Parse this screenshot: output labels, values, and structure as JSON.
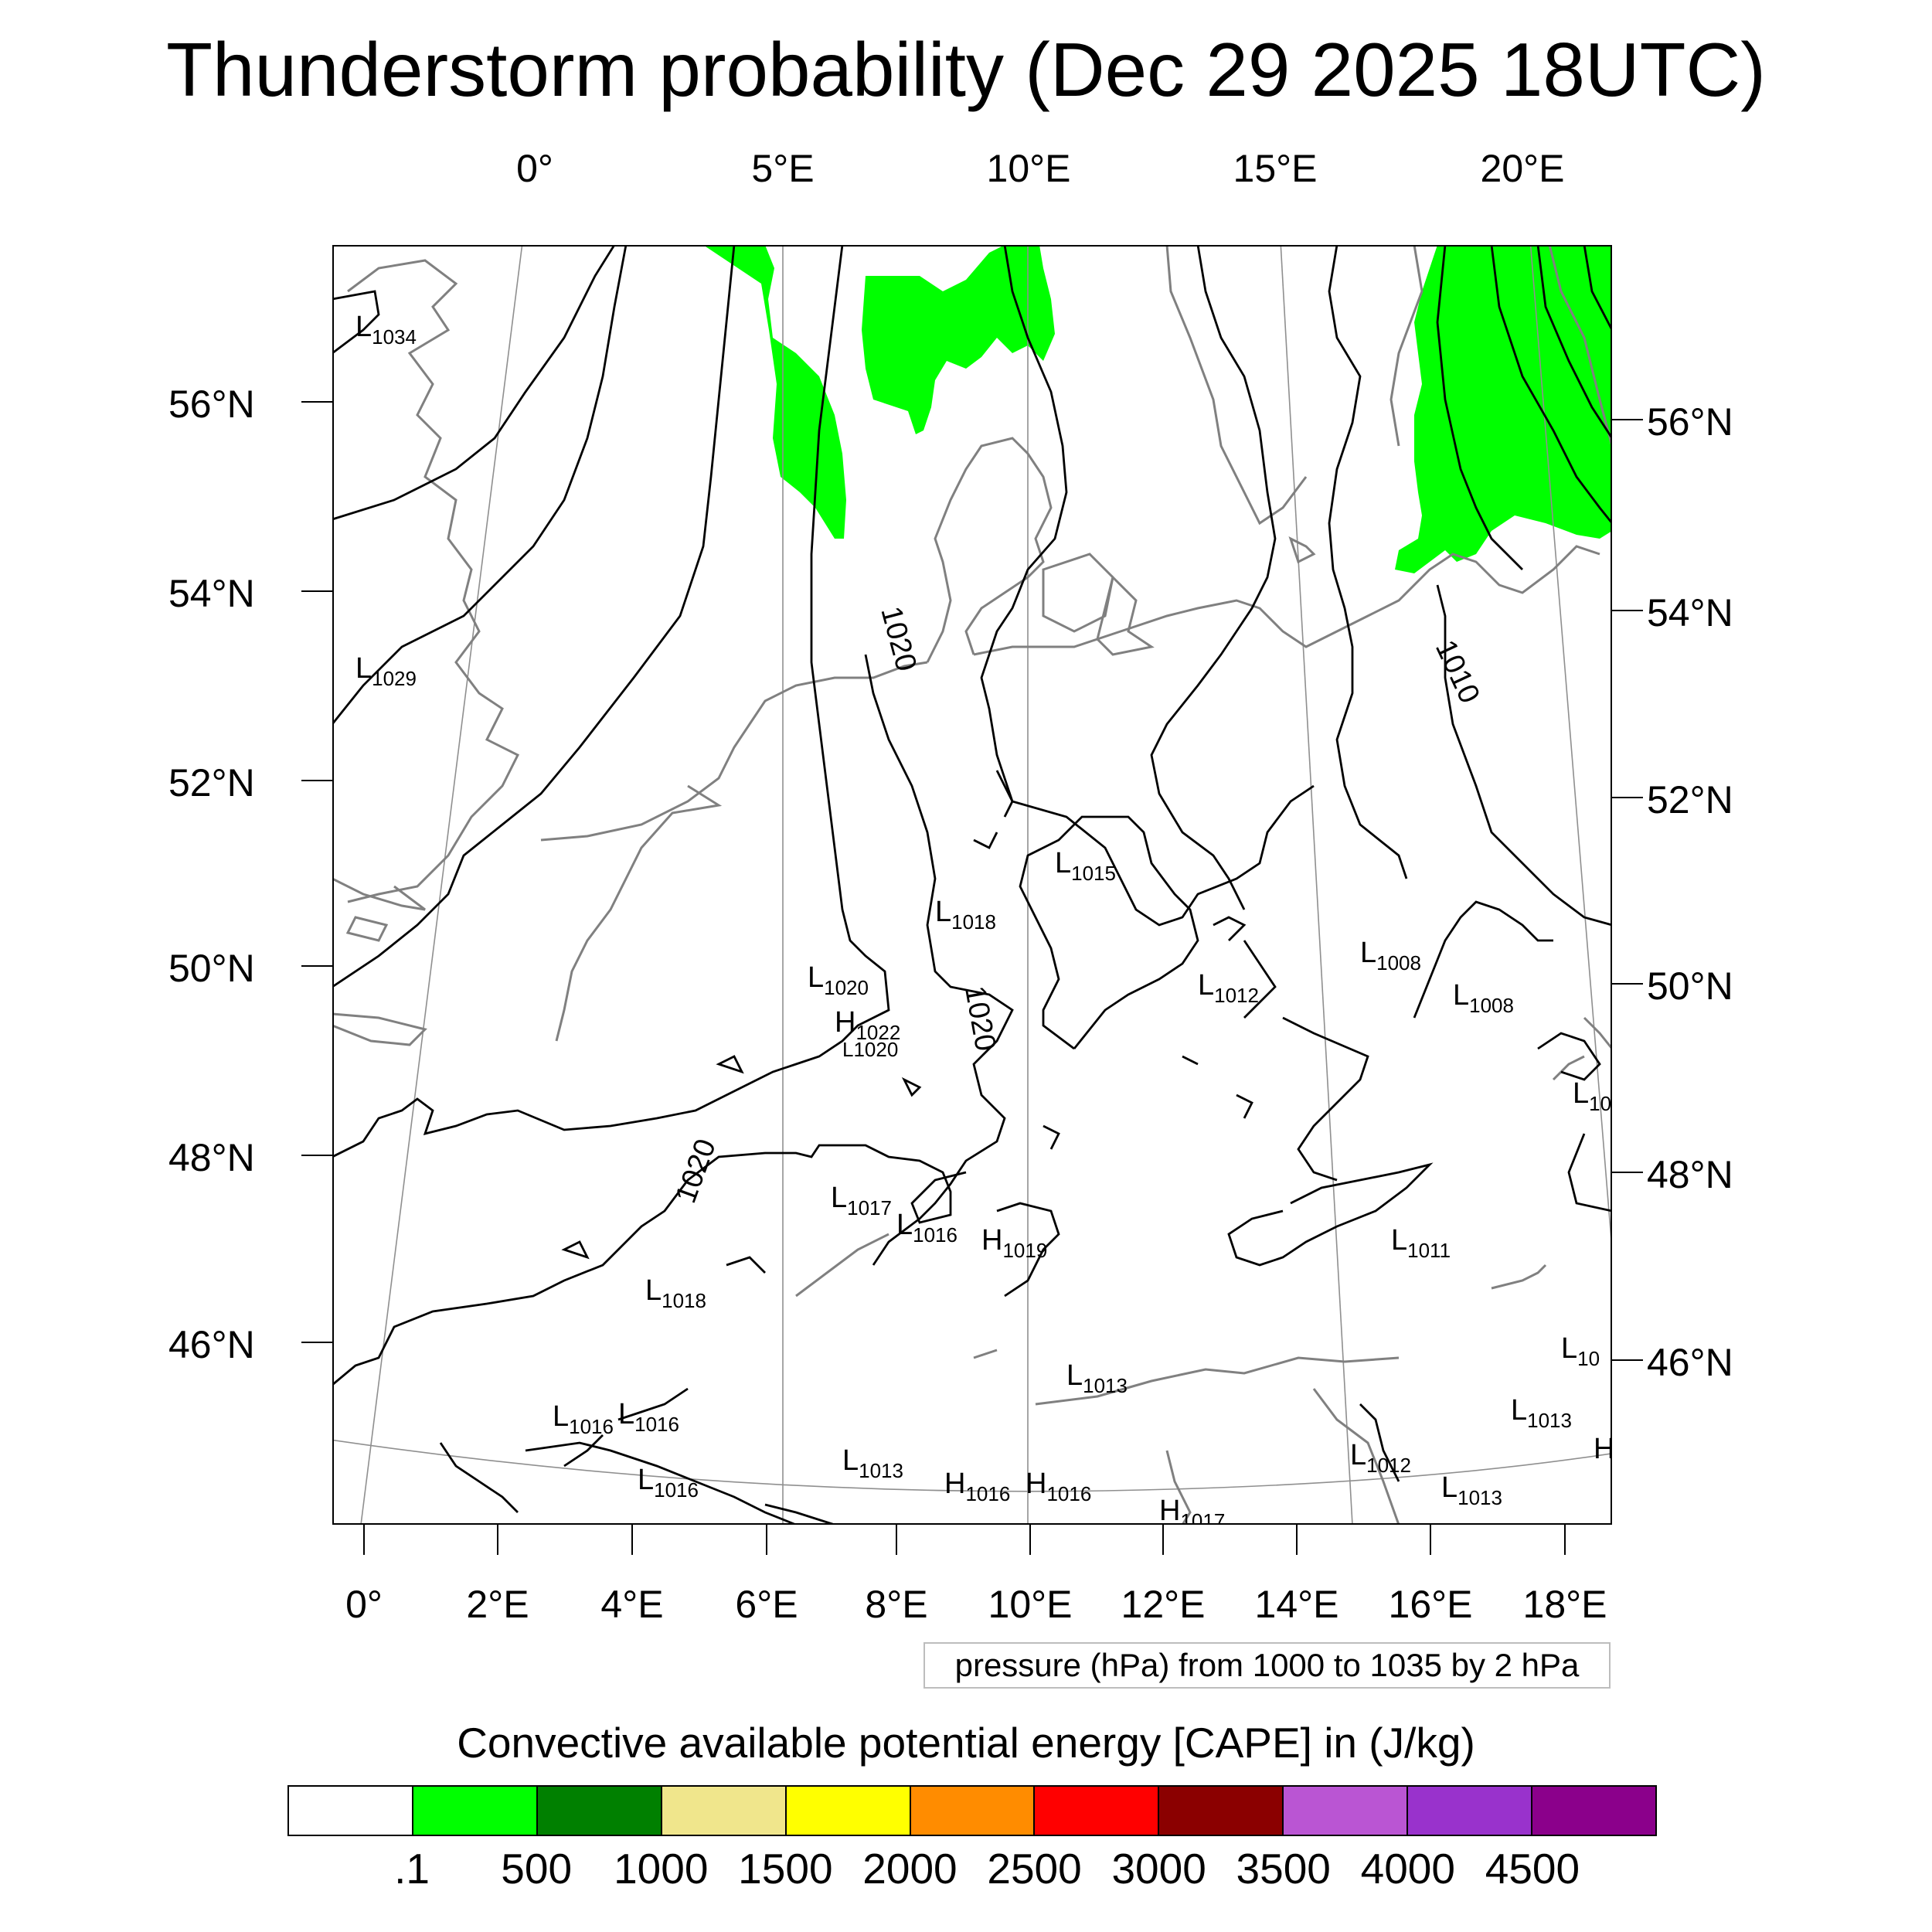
{
  "title": "Thunderstorm probability (Dec 29 2025 18UTC)",
  "axes": {
    "top_lon": [
      "0°",
      "5°E",
      "10°E",
      "15°E",
      "20°E"
    ],
    "bottom_lon": [
      "0°",
      "2°E",
      "4°E",
      "6°E",
      "8°E",
      "10°E",
      "12°E",
      "14°E",
      "16°E",
      "18°E"
    ],
    "left_lat": [
      "56°N",
      "54°N",
      "52°N",
      "50°N",
      "48°N",
      "46°N"
    ],
    "right_lat": [
      "56°N",
      "54°N",
      "52°N",
      "50°N",
      "48°N",
      "46°N"
    ]
  },
  "pressure_note": "pressure (hPa) from 1000 to 1035 by 2 hPa",
  "colorbar": {
    "title": "Convective available potential energy [CAPE] in (J/kg)",
    "colors": [
      "#ffffff",
      "#00ff00",
      "#008000",
      "#f0e68c",
      "#ffff00",
      "#ff8c00",
      "#ff0000",
      "#8b0000",
      "#ba55d3",
      "#9932cc",
      "#8b008b"
    ],
    "labels": [
      ".1",
      "500",
      "1000",
      "1500",
      "2000",
      "2500",
      "3000",
      "3500",
      "4000",
      "4500"
    ]
  },
  "isobar_labels": [
    {
      "text": "1020",
      "rot": 75
    },
    {
      "text": "1020",
      "rot": 80
    },
    {
      "text": "1020",
      "rot": -70
    },
    {
      "text": "1010",
      "rot": 65
    }
  ],
  "pressure_centers": [
    {
      "type": "L",
      "value": "1034"
    },
    {
      "type": "L",
      "value": "1029"
    },
    {
      "type": "L",
      "value": "1015"
    },
    {
      "type": "L",
      "value": "1018"
    },
    {
      "type": "L",
      "value": "1020"
    },
    {
      "type": "H",
      "value": "1022"
    },
    {
      "type": "L",
      "value": "1020"
    },
    {
      "type": "L",
      "value": "1012"
    },
    {
      "type": "L",
      "value": "1008"
    },
    {
      "type": "L",
      "value": "1008"
    },
    {
      "type": "L",
      "value": "10"
    },
    {
      "type": "L",
      "value": "1017"
    },
    {
      "type": "L",
      "value": "1016"
    },
    {
      "type": "H",
      "value": "1019"
    },
    {
      "type": "L",
      "value": "1011"
    },
    {
      "type": "L",
      "value": "1018"
    },
    {
      "type": "L",
      "value": "1013"
    },
    {
      "type": "L",
      "value": "10"
    },
    {
      "type": "L",
      "value": "1016"
    },
    {
      "type": "L",
      "value": "1016"
    },
    {
      "type": "L",
      "value": "1013"
    },
    {
      "type": "L",
      "value": "1016"
    },
    {
      "type": "H",
      "value": "1016"
    },
    {
      "type": "H",
      "value": "1016"
    },
    {
      "type": "L",
      "value": "1012"
    },
    {
      "type": "L",
      "value": "1013"
    },
    {
      "type": "L",
      "value": "1013"
    },
    {
      "type": "H",
      "value": "1017"
    },
    {
      "type": "H",
      "value": ""
    }
  ]
}
